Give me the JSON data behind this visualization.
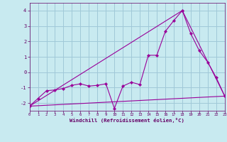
{
  "bg_color": "#c8eaf0",
  "line_color": "#990099",
  "grid_color": "#a0c8d8",
  "xlabel": "Windchill (Refroidissement éolien,°C)",
  "xlabel_color": "#660066",
  "tick_color": "#660066",
  "xlim": [
    0,
    23
  ],
  "ylim": [
    -2.5,
    4.5
  ],
  "yticks": [
    -2,
    -1,
    0,
    1,
    2,
    3,
    4
  ],
  "xticks": [
    0,
    1,
    2,
    3,
    4,
    5,
    6,
    7,
    8,
    9,
    10,
    11,
    12,
    13,
    14,
    15,
    16,
    17,
    18,
    19,
    20,
    21,
    22,
    23
  ],
  "line1_x": [
    0,
    1,
    2,
    3,
    4,
    5,
    6,
    7,
    8,
    9,
    10,
    11,
    12,
    13,
    14,
    15,
    16,
    17,
    18,
    19,
    20,
    21,
    22,
    23
  ],
  "line1_y": [
    -2.2,
    -1.7,
    -1.2,
    -1.15,
    -1.05,
    -0.85,
    -0.75,
    -0.9,
    -0.85,
    -0.75,
    -2.35,
    -0.9,
    -0.65,
    -0.8,
    1.1,
    1.1,
    2.65,
    3.35,
    4.0,
    2.5,
    1.4,
    0.65,
    -0.35,
    -1.55
  ],
  "line2_x": [
    0,
    23
  ],
  "line2_y": [
    -2.2,
    -1.55
  ],
  "line3_x": [
    0,
    18,
    23
  ],
  "line3_y": [
    -2.2,
    4.0,
    -1.55
  ]
}
